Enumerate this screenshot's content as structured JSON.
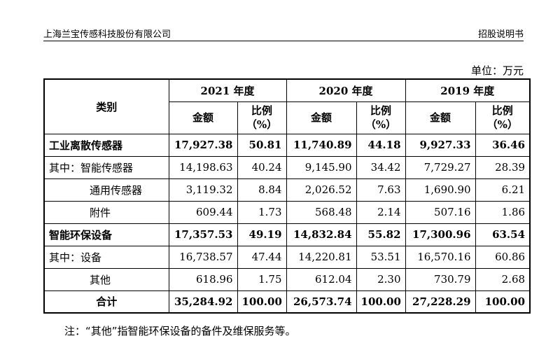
{
  "header": {
    "company": "上海兰宝传感科技股份有限公司",
    "doc": "招股说明书"
  },
  "unit": "单位：万元",
  "table": {
    "category_header": "类别",
    "years": [
      "2021 年度",
      "2020 年度",
      "2019 年度"
    ],
    "amount_label": "金额",
    "ratio_label_line1": "比例",
    "ratio_label_line2": "（%）",
    "rows": [
      {
        "label": "工业离散传感器",
        "cells": [
          "17,927.38",
          "50.81",
          "11,740.89",
          "44.18",
          "9,927.33",
          "36.46"
        ]
      },
      {
        "label": "其中：智能传感器",
        "cells": [
          "14,198.63",
          "40.24",
          "9,145.90",
          "34.42",
          "7,729.27",
          "28.39"
        ]
      },
      {
        "label": "通用传感器",
        "cells": [
          "3,119.32",
          "8.84",
          "2,026.52",
          "7.63",
          "1,690.90",
          "6.21"
        ]
      },
      {
        "label": "附件",
        "cells": [
          "609.44",
          "1.73",
          "568.48",
          "2.14",
          "507.16",
          "1.86"
        ]
      },
      {
        "label": "智能环保设备",
        "cells": [
          "17,357.53",
          "49.19",
          "14,832.84",
          "55.82",
          "17,300.96",
          "63.54"
        ]
      },
      {
        "label": "其中：设备",
        "cells": [
          "16,738.57",
          "47.44",
          "14,220.81",
          "53.51",
          "16,570.16",
          "60.86"
        ]
      },
      {
        "label": "其他",
        "cells": [
          "618.96",
          "1.75",
          "612.04",
          "2.30",
          "730.79",
          "2.68"
        ]
      },
      {
        "label": "合计",
        "cells": [
          "35,284.92",
          "100.00",
          "26,573.74",
          "100.00",
          "27,228.29",
          "100.00"
        ]
      }
    ]
  },
  "note": "注：“其他”指智能环保设备的备件及维保服务等。"
}
